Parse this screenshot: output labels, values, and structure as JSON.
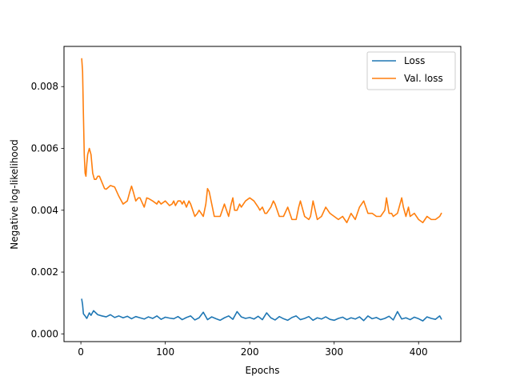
{
  "chart_data": {
    "type": "line",
    "title": "",
    "xlabel": "Epochs",
    "ylabel": "Negative log-likelihood",
    "xlim": [
      -20,
      450
    ],
    "ylim": [
      -0.00025,
      0.0093
    ],
    "xticks": [
      0,
      100,
      200,
      300,
      400
    ],
    "xtick_labels": [
      "0",
      "100",
      "200",
      "300",
      "400"
    ],
    "yticks": [
      0.0,
      0.002,
      0.004,
      0.006,
      0.008
    ],
    "ytick_labels": [
      "0.000",
      "0.002",
      "0.004",
      "0.006",
      "0.008"
    ],
    "grid": false,
    "legend": {
      "position": "top-right"
    },
    "series": [
      {
        "name": "Loss",
        "color": "#1f77b4",
        "x": [
          1,
          2,
          3,
          5,
          7,
          10,
          12,
          15,
          20,
          25,
          30,
          35,
          40,
          45,
          50,
          55,
          60,
          65,
          70,
          75,
          80,
          85,
          90,
          95,
          100,
          105,
          110,
          115,
          120,
          125,
          130,
          135,
          140,
          145,
          150,
          155,
          160,
          165,
          170,
          175,
          180,
          185,
          190,
          195,
          200,
          205,
          210,
          215,
          220,
          225,
          230,
          235,
          240,
          245,
          250,
          255,
          260,
          265,
          270,
          275,
          280,
          285,
          290,
          295,
          300,
          305,
          310,
          315,
          320,
          325,
          330,
          335,
          340,
          345,
          350,
          355,
          360,
          365,
          370,
          375,
          380,
          385,
          390,
          395,
          400,
          405,
          410,
          415,
          420,
          425,
          427
        ],
        "values": [
          0.00112,
          0.00095,
          0.00065,
          0.00058,
          0.0005,
          0.00068,
          0.0006,
          0.00075,
          0.00062,
          0.00058,
          0.00055,
          0.00062,
          0.00053,
          0.00058,
          0.00052,
          0.00057,
          0.00049,
          0.00056,
          0.00052,
          0.00048,
          0.00055,
          0.0005,
          0.00058,
          0.00047,
          0.00054,
          0.00051,
          0.00049,
          0.00056,
          0.00046,
          0.00053,
          0.00058,
          0.00045,
          0.00052,
          0.0007,
          0.00046,
          0.00055,
          0.00049,
          0.00044,
          0.00052,
          0.00058,
          0.00047,
          0.00072,
          0.00055,
          0.0005,
          0.00053,
          0.00048,
          0.00057,
          0.00046,
          0.00068,
          0.00052,
          0.00045,
          0.00056,
          0.00049,
          0.00044,
          0.00053,
          0.00058,
          0.00046,
          0.0005,
          0.00056,
          0.00044,
          0.00052,
          0.00048,
          0.00055,
          0.00047,
          0.00044,
          0.0005,
          0.00054,
          0.00046,
          0.00052,
          0.00048,
          0.00055,
          0.00043,
          0.00058,
          0.00049,
          0.00053,
          0.00046,
          0.0005,
          0.00057,
          0.00045,
          0.00072,
          0.00048,
          0.00052,
          0.00046,
          0.00054,
          0.00049,
          0.00042,
          0.00055,
          0.0005,
          0.00047,
          0.00058,
          0.00048
        ]
      },
      {
        "name": "Val. loss",
        "color": "#ff7f0e",
        "x": [
          1,
          2,
          3,
          4,
          5,
          6,
          7,
          8,
          10,
          12,
          14,
          16,
          18,
          20,
          22,
          25,
          28,
          30,
          35,
          40,
          45,
          50,
          55,
          58,
          60,
          62,
          65,
          68,
          70,
          75,
          78,
          80,
          85,
          90,
          92,
          95,
          100,
          105,
          108,
          110,
          112,
          115,
          118,
          120,
          122,
          125,
          128,
          130,
          135,
          138,
          140,
          145,
          148,
          150,
          152,
          155,
          158,
          160,
          165,
          170,
          175,
          178,
          180,
          182,
          185,
          188,
          190,
          195,
          200,
          205,
          210,
          212,
          215,
          218,
          220,
          225,
          228,
          230,
          235,
          240,
          245,
          250,
          255,
          258,
          260,
          265,
          270,
          272,
          275,
          280,
          285,
          290,
          295,
          300,
          305,
          310,
          315,
          320,
          325,
          330,
          335,
          340,
          345,
          350,
          355,
          360,
          362,
          365,
          368,
          370,
          375,
          380,
          382,
          385,
          388,
          390,
          395,
          400,
          405,
          410,
          415,
          420,
          425,
          427
        ],
        "values": [
          0.0089,
          0.0085,
          0.0071,
          0.0058,
          0.0052,
          0.0051,
          0.0055,
          0.0058,
          0.006,
          0.0058,
          0.0052,
          0.005,
          0.005,
          0.0051,
          0.0051,
          0.0049,
          0.0047,
          0.00468,
          0.0048,
          0.00475,
          0.00445,
          0.0042,
          0.0043,
          0.0046,
          0.00478,
          0.0046,
          0.0043,
          0.0044,
          0.0044,
          0.0041,
          0.0044,
          0.00438,
          0.0043,
          0.0042,
          0.0043,
          0.0042,
          0.0043,
          0.00415,
          0.0042,
          0.0043,
          0.00415,
          0.0043,
          0.0043,
          0.0042,
          0.0043,
          0.0041,
          0.0043,
          0.0042,
          0.0038,
          0.0039,
          0.004,
          0.0038,
          0.0042,
          0.0047,
          0.0046,
          0.0042,
          0.0038,
          0.0038,
          0.0038,
          0.0042,
          0.0038,
          0.0042,
          0.0044,
          0.004,
          0.004,
          0.0042,
          0.0041,
          0.0043,
          0.0044,
          0.0043,
          0.0041,
          0.004,
          0.0041,
          0.0039,
          0.0039,
          0.0041,
          0.0043,
          0.0042,
          0.0038,
          0.0038,
          0.0041,
          0.0037,
          0.0037,
          0.0041,
          0.0043,
          0.0038,
          0.0037,
          0.0038,
          0.0043,
          0.0037,
          0.0038,
          0.0041,
          0.0039,
          0.0038,
          0.0037,
          0.0038,
          0.0036,
          0.0039,
          0.0037,
          0.0041,
          0.0043,
          0.0039,
          0.0039,
          0.0038,
          0.0038,
          0.004,
          0.0044,
          0.0039,
          0.0039,
          0.0038,
          0.0039,
          0.0044,
          0.0041,
          0.0038,
          0.0041,
          0.0038,
          0.0039,
          0.0037,
          0.0036,
          0.0038,
          0.0037,
          0.0037,
          0.0038,
          0.0039
        ]
      }
    ]
  }
}
